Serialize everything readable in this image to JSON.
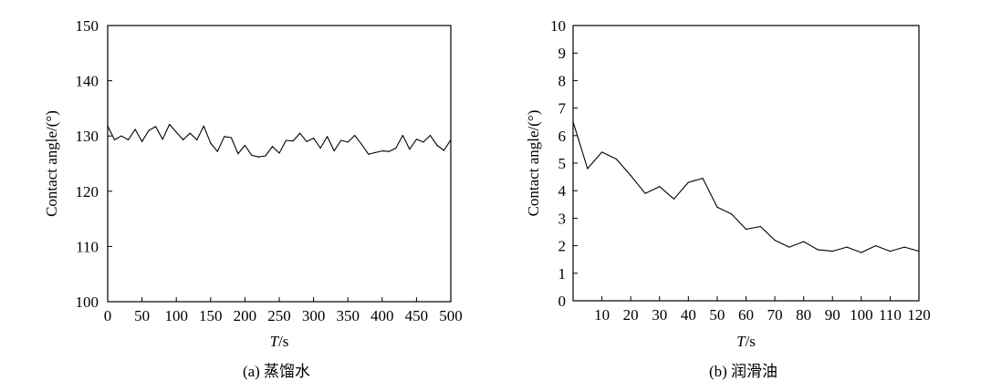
{
  "chart_data": [
    {
      "type": "line",
      "caption": "(a) 蒸馏水",
      "xlabel_italic": "T",
      "xlabel_rest": "/s",
      "ylabel": "Contact angle/(°)",
      "xlim": [
        0,
        500
      ],
      "ylim": [
        100,
        150
      ],
      "xticks": [
        0,
        50,
        100,
        150,
        200,
        250,
        300,
        350,
        400,
        450,
        500
      ],
      "yticks": [
        100,
        110,
        120,
        130,
        140,
        150
      ],
      "x": [
        0,
        10,
        20,
        30,
        40,
        50,
        60,
        70,
        80,
        90,
        100,
        110,
        120,
        130,
        140,
        150,
        160,
        170,
        180,
        190,
        200,
        210,
        220,
        230,
        240,
        250,
        260,
        270,
        280,
        290,
        300,
        310,
        320,
        330,
        340,
        350,
        360,
        370,
        380,
        390,
        400,
        410,
        420,
        430,
        440,
        450,
        460,
        470,
        480,
        490,
        500
      ],
      "y": [
        131.8,
        129.3,
        130.0,
        129.3,
        131.2,
        129.0,
        131.0,
        131.7,
        129.4,
        132.1,
        130.7,
        129.3,
        130.5,
        129.3,
        131.8,
        128.7,
        127.2,
        129.9,
        129.7,
        126.8,
        128.3,
        126.5,
        126.2,
        126.4,
        128.1,
        126.9,
        129.2,
        129.1,
        130.5,
        129.0,
        129.6,
        127.8,
        129.9,
        127.3,
        129.2,
        128.9,
        130.1,
        128.5,
        126.7,
        127.0,
        127.3,
        127.2,
        127.8,
        130.1,
        127.6,
        129.4,
        128.9,
        130.1,
        128.3,
        127.4,
        129.3
      ],
      "grid": false
    },
    {
      "type": "line",
      "caption": "(b) 润滑油",
      "xlabel_italic": "T",
      "xlabel_rest": "/s",
      "ylabel": "Contact angle/(°)",
      "xlim": [
        0,
        120
      ],
      "ylim": [
        0,
        10
      ],
      "xticks": [
        10,
        20,
        30,
        40,
        50,
        60,
        70,
        80,
        90,
        100,
        110,
        120
      ],
      "yticks": [
        0,
        1,
        2,
        3,
        4,
        5,
        6,
        7,
        8,
        9,
        10
      ],
      "x": [
        0,
        5,
        10,
        15,
        20,
        25,
        30,
        35,
        40,
        45,
        50,
        55,
        60,
        65,
        70,
        75,
        80,
        85,
        90,
        95,
        100,
        105,
        110,
        115,
        120
      ],
      "y": [
        6.5,
        4.8,
        5.4,
        5.15,
        4.55,
        3.9,
        4.15,
        3.7,
        4.3,
        4.45,
        3.4,
        3.15,
        2.6,
        2.7,
        2.2,
        1.95,
        2.15,
        1.85,
        1.8,
        1.95,
        1.75,
        2.0,
        1.8,
        1.95,
        1.8
      ],
      "grid": false
    }
  ]
}
